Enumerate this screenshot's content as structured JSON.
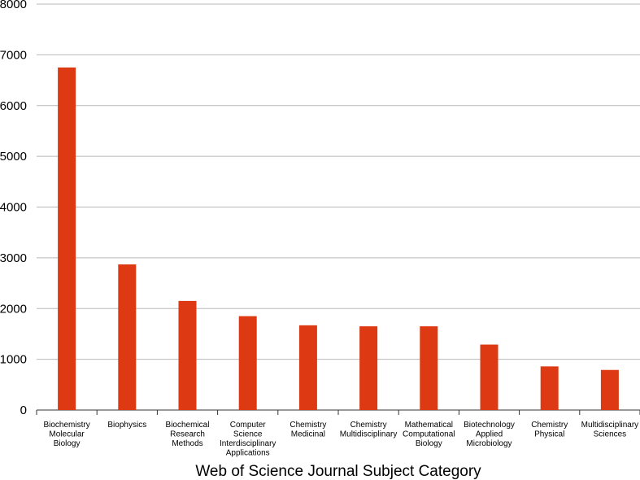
{
  "chart_data": {
    "type": "bar",
    "title": "",
    "xlabel": "Web of Science Journal Subject Category",
    "ylabel": "",
    "ylim": [
      0,
      8000
    ],
    "yticks": [
      "0",
      "1000",
      "2000",
      "3000",
      "4000",
      "5000",
      "6000",
      "7000",
      "8000"
    ],
    "grid": true,
    "legend": "none",
    "bar_color": "#dd3a14",
    "categories": [
      [
        "Biochemistry",
        "Molecular",
        "Biology"
      ],
      [
        "Biophysics"
      ],
      [
        "Biochemical",
        "Research",
        "Methods"
      ],
      [
        "Computer",
        "Science",
        "Interdisciplinary",
        "Applications"
      ],
      [
        "Chemistry",
        "Medicinal"
      ],
      [
        "Chemistry",
        "Multidisciplinary"
      ],
      [
        "Mathematical",
        "Computational",
        "Biology"
      ],
      [
        "Biotechnology",
        "Applied",
        "Microbiology"
      ],
      [
        "Chemistry",
        "Physical"
      ],
      [
        "Multidisciplinary",
        "Sciences"
      ]
    ],
    "values": [
      6750,
      2870,
      2150,
      1850,
      1670,
      1650,
      1650,
      1290,
      860,
      790
    ]
  }
}
